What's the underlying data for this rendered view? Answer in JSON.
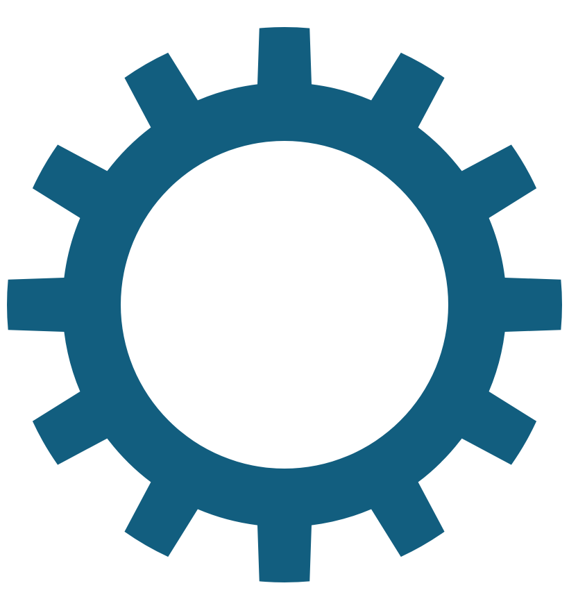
{
  "icon": {
    "name": "gear-icon",
    "teeth": 12,
    "color": "#125E7F",
    "background": "#FFFFFF"
  }
}
